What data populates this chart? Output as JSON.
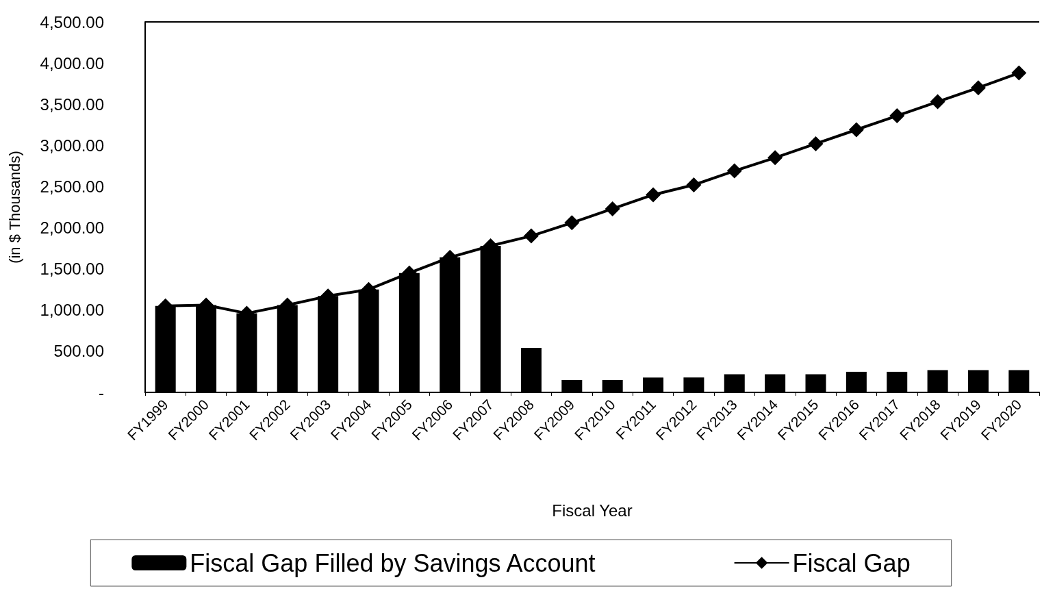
{
  "chart_data": {
    "type": "bar",
    "xlabel": "Fiscal Year",
    "ylabel": "(in $ Thousands)",
    "categories": [
      "FY1999",
      "FY2000",
      "FY2001",
      "FY2002",
      "FY2003",
      "FY2004",
      "FY2005",
      "FY2006",
      "FY2007",
      "FY2008",
      "FY2009",
      "FY2010",
      "FY2011",
      "FY2012",
      "FY2013",
      "FY2014",
      "FY2015",
      "FY2016",
      "FY2017",
      "FY2018",
      "FY2019",
      "FY2020"
    ],
    "series": [
      {
        "name": "Fiscal Gap Filled by Savings Account",
        "color": "#000000",
        "values": [
          1050,
          1060,
          960,
          1060,
          1170,
          1250,
          1450,
          1640,
          1780,
          540,
          150,
          150,
          180,
          180,
          220,
          220,
          220,
          250,
          250,
          270,
          270,
          270
        ]
      },
      {
        "name": "Fiscal Gap",
        "type": "line",
        "color": "#000000",
        "marker": "diamond",
        "values": [
          1050,
          1060,
          960,
          1060,
          1170,
          1250,
          1450,
          1640,
          1780,
          1900,
          2060,
          2230,
          2400,
          2520,
          2690,
          2850,
          3020,
          3190,
          3360,
          3530,
          3700,
          3880
        ]
      }
    ],
    "ylim": [
      0,
      4500
    ],
    "yticks": [
      {
        "value": 0,
        "label": "-"
      },
      {
        "value": 500,
        "label": "500.00"
      },
      {
        "value": 1000,
        "label": "1,000.00"
      },
      {
        "value": 1500,
        "label": "1,500.00"
      },
      {
        "value": 2000,
        "label": "2,000.00"
      },
      {
        "value": 2500,
        "label": "2,500.00"
      },
      {
        "value": 3000,
        "label": "3,000.00"
      },
      {
        "value": 3500,
        "label": "3,500.00"
      },
      {
        "value": 4000,
        "label": "4,000.00"
      },
      {
        "value": 4500,
        "label": "4,500.00"
      }
    ],
    "grid": false,
    "legend": "bottom"
  }
}
